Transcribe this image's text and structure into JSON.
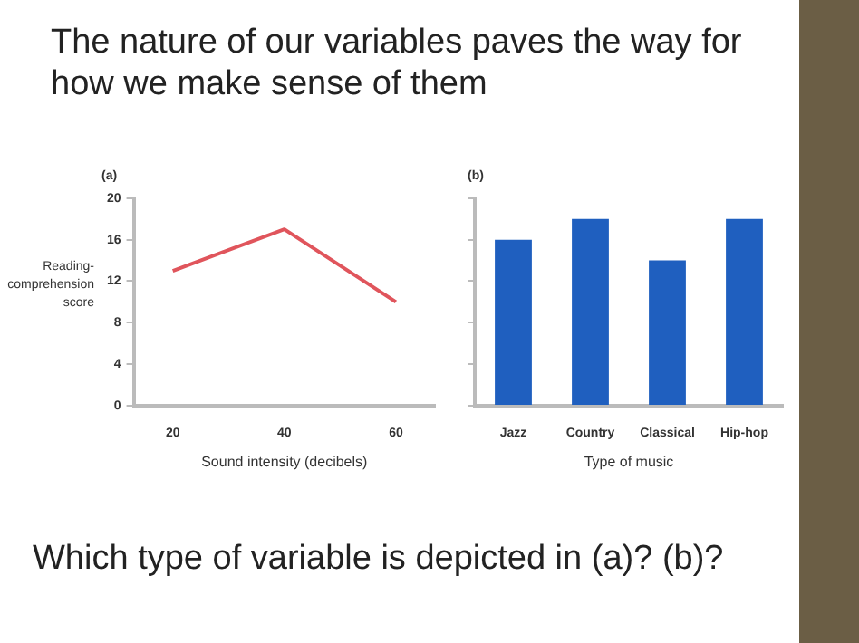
{
  "chart_data": [
    {
      "type": "line",
      "title": "(a)",
      "xlabel": "Sound intensity (decibels)",
      "ylabel": "Reading-comprehension score",
      "x": [
        20,
        40,
        60
      ],
      "series": [
        {
          "color": "#e0555c",
          "values": [
            13,
            17,
            10
          ]
        }
      ],
      "xlim": [
        13,
        67
      ],
      "xticks": [
        20,
        40,
        60
      ],
      "ylim": [
        0,
        20
      ],
      "yticks": [
        0,
        4,
        8,
        12,
        16,
        20
      ],
      "marker": "none",
      "annotations": [
        "The nature of our variables paves the way for how we make sense of them",
        "Which type of variable is depicted in (a)? (b)?"
      ]
    },
    {
      "type": "bar",
      "title": "(b)",
      "xlabel": "Type of music",
      "categories": [
        "Jazz",
        "Country",
        "Classical",
        "Hip-hop"
      ],
      "values": [
        16,
        18,
        14,
        18
      ],
      "color": "#1f5fbf",
      "ylim": [
        0,
        20
      ],
      "yticks": [
        {
          "value": 0,
          "label": null
        },
        {
          "value": 4,
          "label": null
        },
        {
          "value": 8,
          "label": null
        },
        {
          "value": 12,
          "label": null
        },
        {
          "value": 16,
          "label": null
        },
        {
          "value": 20,
          "label": null
        }
      ],
      "tick_labels": "x"
    }
  ]
}
